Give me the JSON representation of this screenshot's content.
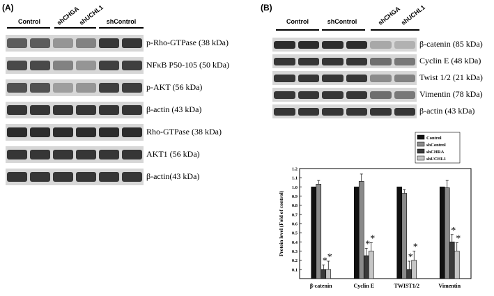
{
  "panel_a": {
    "label": "(A)",
    "groups": {
      "control": "Control",
      "shchga": "shCHGA",
      "shuchl1": "shUCHL1",
      "shcontrol": "shControl"
    },
    "blots": [
      {
        "label": "p-Rho-GTPase (38 kDa)",
        "intensity": [
          0.65,
          0.65,
          0.35,
          0.45,
          0.85,
          0.85
        ]
      },
      {
        "label": "NFκB P50-105 (50 kDa)",
        "intensity": [
          0.75,
          0.75,
          0.45,
          0.35,
          0.8,
          0.8
        ]
      },
      {
        "label": "p-AKT (56 kDa)",
        "intensity": [
          0.7,
          0.7,
          0.3,
          0.35,
          0.8,
          0.8
        ]
      },
      {
        "label": "β-actin (43 kDa)",
        "intensity": [
          0.85,
          0.85,
          0.85,
          0.85,
          0.85,
          0.85
        ]
      },
      {
        "label": "Rho-GTPase (38 kDa)",
        "intensity": [
          0.9,
          0.9,
          0.9,
          0.9,
          0.9,
          0.9
        ]
      },
      {
        "label": "AKT1 (56 kDa)",
        "intensity": [
          0.85,
          0.85,
          0.85,
          0.85,
          0.85,
          0.85
        ]
      },
      {
        "label": "β-actin(43 kDa)",
        "intensity": [
          0.85,
          0.85,
          0.85,
          0.85,
          0.85,
          0.85
        ]
      }
    ]
  },
  "panel_b": {
    "label": "(B)",
    "groups": {
      "control": "Control",
      "shcontrol": "shControl",
      "shchga": "shCHGA",
      "shuchl1": "shUCHL1"
    },
    "blots": [
      {
        "label": "β-catenin (85 kDa)",
        "intensity": [
          0.9,
          0.9,
          0.9,
          0.9,
          0.25,
          0.2
        ]
      },
      {
        "label": "Cyclin E (48 kDa)",
        "intensity": [
          0.85,
          0.85,
          0.85,
          0.85,
          0.55,
          0.5
        ]
      },
      {
        "label": "Twist 1/2 (21 kDa)",
        "intensity": [
          0.85,
          0.85,
          0.85,
          0.85,
          0.4,
          0.45
        ]
      },
      {
        "label": "Vimentin (78 kDa)",
        "intensity": [
          0.85,
          0.85,
          0.85,
          0.85,
          0.55,
          0.5
        ]
      },
      {
        "label": "β-actin (43 kDa)",
        "intensity": [
          0.85,
          0.85,
          0.85,
          0.85,
          0.85,
          0.85
        ]
      }
    ]
  },
  "chart_data": {
    "type": "bar",
    "title": "",
    "xlabel": "",
    "ylabel": "Protein level (Fold of control)",
    "ylim": [
      0,
      1.2
    ],
    "yticks": [
      "0.1",
      "0.2",
      "0.3",
      "0.4",
      "0.5",
      "0.6",
      "0.7",
      "0.8",
      "0.9",
      "1.0",
      "1.1",
      "1.2"
    ],
    "categories": [
      "β-catenin",
      "Cyclin E",
      "TWIST1/2",
      "Vimentin"
    ],
    "legend_position": "top-right",
    "grid": false,
    "series": [
      {
        "name": "Control",
        "color": "#111111",
        "values": [
          1.0,
          1.0,
          1.0,
          1.0
        ],
        "errors": [
          0,
          0,
          0,
          0
        ]
      },
      {
        "name": "shControl",
        "color": "#8a8a8a",
        "values": [
          1.03,
          1.06,
          0.93,
          0.99
        ],
        "errors": [
          0.04,
          0.08,
          0.04,
          0.08
        ]
      },
      {
        "name": "shCHRA",
        "color": "#3a3a3a",
        "values": [
          0.1,
          0.25,
          0.1,
          0.4
        ],
        "errors": [
          0.05,
          0.08,
          0.09,
          0.08
        ]
      },
      {
        "name": "shUCHL1",
        "color": "#c6c6c6",
        "values": [
          0.1,
          0.3,
          0.2,
          0.3
        ],
        "errors": [
          0.09,
          0.09,
          0.1,
          0.09
        ]
      }
    ],
    "annotations": [
      "*",
      "*",
      "*",
      "*",
      "*",
      "*",
      "*",
      "*"
    ],
    "significant": [
      [
        false,
        false,
        true,
        true
      ],
      [
        false,
        false,
        true,
        true
      ],
      [
        false,
        false,
        true,
        true
      ],
      [
        false,
        false,
        true,
        true
      ]
    ]
  }
}
